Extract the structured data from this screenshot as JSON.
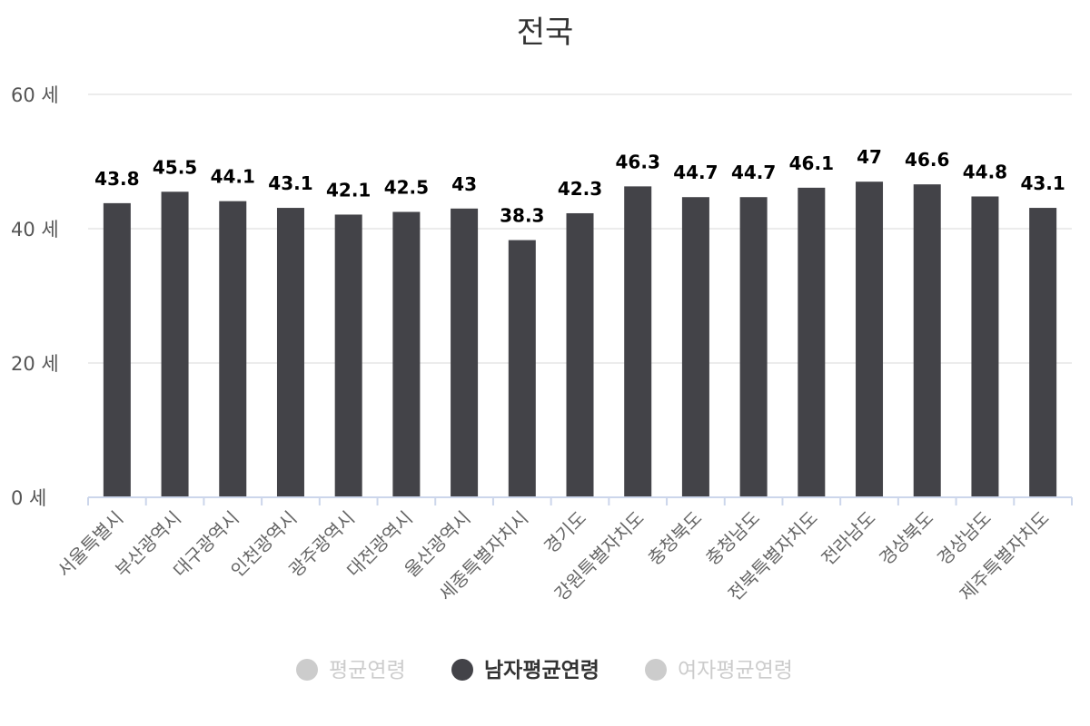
{
  "chart_data": {
    "type": "bar",
    "title": "전국",
    "y_unit": "세",
    "ylim": [
      0,
      60
    ],
    "yticks": [
      0,
      20,
      40,
      60
    ],
    "ytick_labels": [
      "0 세",
      "20 세",
      "40 세",
      "60 세"
    ],
    "grid": true,
    "legend_position": "bottom",
    "categories": [
      "서울특별시",
      "부산광역시",
      "대구광역시",
      "인천광역시",
      "광주광역시",
      "대전광역시",
      "울산광역시",
      "세종특별자치시",
      "경기도",
      "강원특별자치도",
      "충청북도",
      "충청남도",
      "전북특별자치도",
      "전라남도",
      "경상북도",
      "경상남도",
      "제주특별자치도"
    ],
    "series": [
      {
        "name": "남자평균연령",
        "color": "#434348",
        "visible": true,
        "values": [
          43.8,
          45.5,
          44.1,
          43.1,
          42.1,
          42.5,
          43,
          38.3,
          42.3,
          46.3,
          44.7,
          44.7,
          46.1,
          47,
          46.6,
          44.8,
          43.1
        ]
      }
    ],
    "legend": [
      {
        "name": "평균연령",
        "active": false,
        "color": "#cccccc"
      },
      {
        "name": "남자평균연령",
        "active": true,
        "color": "#434348"
      },
      {
        "name": "여자평균연령",
        "active": false,
        "color": "#cccccc"
      }
    ]
  }
}
